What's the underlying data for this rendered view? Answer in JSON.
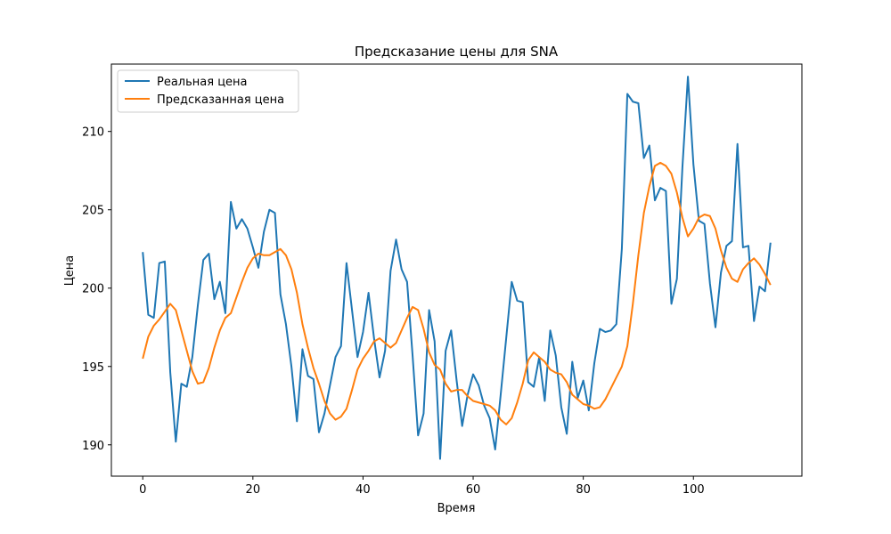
{
  "chart_data": {
    "type": "line",
    "title": "Предсказание цены для SNA",
    "xlabel": "Время",
    "ylabel": "Цена",
    "xlim": [
      -5.7,
      119.7
    ],
    "ylim": [
      188.0,
      214.3
    ],
    "xticks": [
      0,
      20,
      40,
      60,
      80,
      100
    ],
    "yticks": [
      190,
      195,
      200,
      205,
      210
    ],
    "legend_position": "top-left",
    "grid": false,
    "series": [
      {
        "name": "Реальная цена",
        "color": "#1f77b4",
        "values": [
          202.3,
          198.3,
          198.1,
          201.6,
          201.7,
          194.6,
          190.2,
          193.9,
          193.7,
          195.6,
          198.9,
          201.8,
          202.2,
          199.3,
          200.4,
          198.4,
          205.5,
          203.8,
          204.4,
          203.8,
          202.6,
          201.3,
          203.6,
          205.0,
          204.8,
          199.6,
          197.7,
          195.0,
          191.5,
          196.1,
          194.4,
          194.2,
          190.8,
          192.0,
          193.8,
          195.6,
          196.3,
          201.6,
          198.6,
          195.6,
          197.2,
          199.7,
          196.8,
          194.3,
          196.0,
          201.1,
          203.1,
          201.2,
          200.4,
          195.7,
          190.6,
          192.0,
          198.6,
          196.6,
          189.1,
          196.0,
          197.3,
          194.1,
          191.2,
          193.2,
          194.5,
          193.8,
          192.5,
          191.7,
          189.7,
          193.2,
          196.8,
          200.4,
          199.2,
          199.1,
          194.0,
          193.7,
          195.6,
          192.8,
          197.3,
          195.7,
          192.4,
          190.7,
          195.3,
          193.0,
          194.1,
          192.2,
          195.2,
          197.4,
          197.2,
          197.3,
          197.7,
          202.5,
          212.4,
          211.9,
          211.8,
          208.3,
          209.1,
          205.6,
          206.4,
          206.2,
          199.0,
          200.6,
          207.7,
          213.5,
          207.9,
          204.3,
          204.1,
          200.3,
          197.5,
          201.0,
          202.7,
          203.0,
          209.2,
          202.6,
          202.7,
          197.9,
          200.1,
          199.8,
          202.9
        ]
      },
      {
        "name": "Предсказанная цена",
        "color": "#ff7f0e",
        "values": [
          195.5,
          196.9,
          197.6,
          198.0,
          198.5,
          199.0,
          198.6,
          197.3,
          196.0,
          194.7,
          193.9,
          194.0,
          194.9,
          196.2,
          197.3,
          198.1,
          198.4,
          199.4,
          200.4,
          201.3,
          201.9,
          202.2,
          202.1,
          202.1,
          202.3,
          202.5,
          202.1,
          201.2,
          199.7,
          197.7,
          196.2,
          194.9,
          193.9,
          192.8,
          192.0,
          191.6,
          191.8,
          192.3,
          193.5,
          194.8,
          195.5,
          196.0,
          196.6,
          196.8,
          196.5,
          196.2,
          196.5,
          197.3,
          198.1,
          198.8,
          198.6,
          197.4,
          195.9,
          195.1,
          194.8,
          193.9,
          193.4,
          193.5,
          193.5,
          193.1,
          192.8,
          192.7,
          192.6,
          192.5,
          192.2,
          191.6,
          191.3,
          191.7,
          192.7,
          193.9,
          195.4,
          195.9,
          195.6,
          195.3,
          194.8,
          194.6,
          194.5,
          194.0,
          193.2,
          192.9,
          192.6,
          192.5,
          192.3,
          192.4,
          192.9,
          193.6,
          194.3,
          195.0,
          196.3,
          199.0,
          202.1,
          204.8,
          206.5,
          207.8,
          208.0,
          207.8,
          207.3,
          206.1,
          204.5,
          203.3,
          203.8,
          204.5,
          204.7,
          204.6,
          203.8,
          202.4,
          201.3,
          200.6,
          200.4,
          201.2,
          201.6,
          201.9,
          201.5,
          200.9,
          200.2
        ]
      }
    ]
  }
}
